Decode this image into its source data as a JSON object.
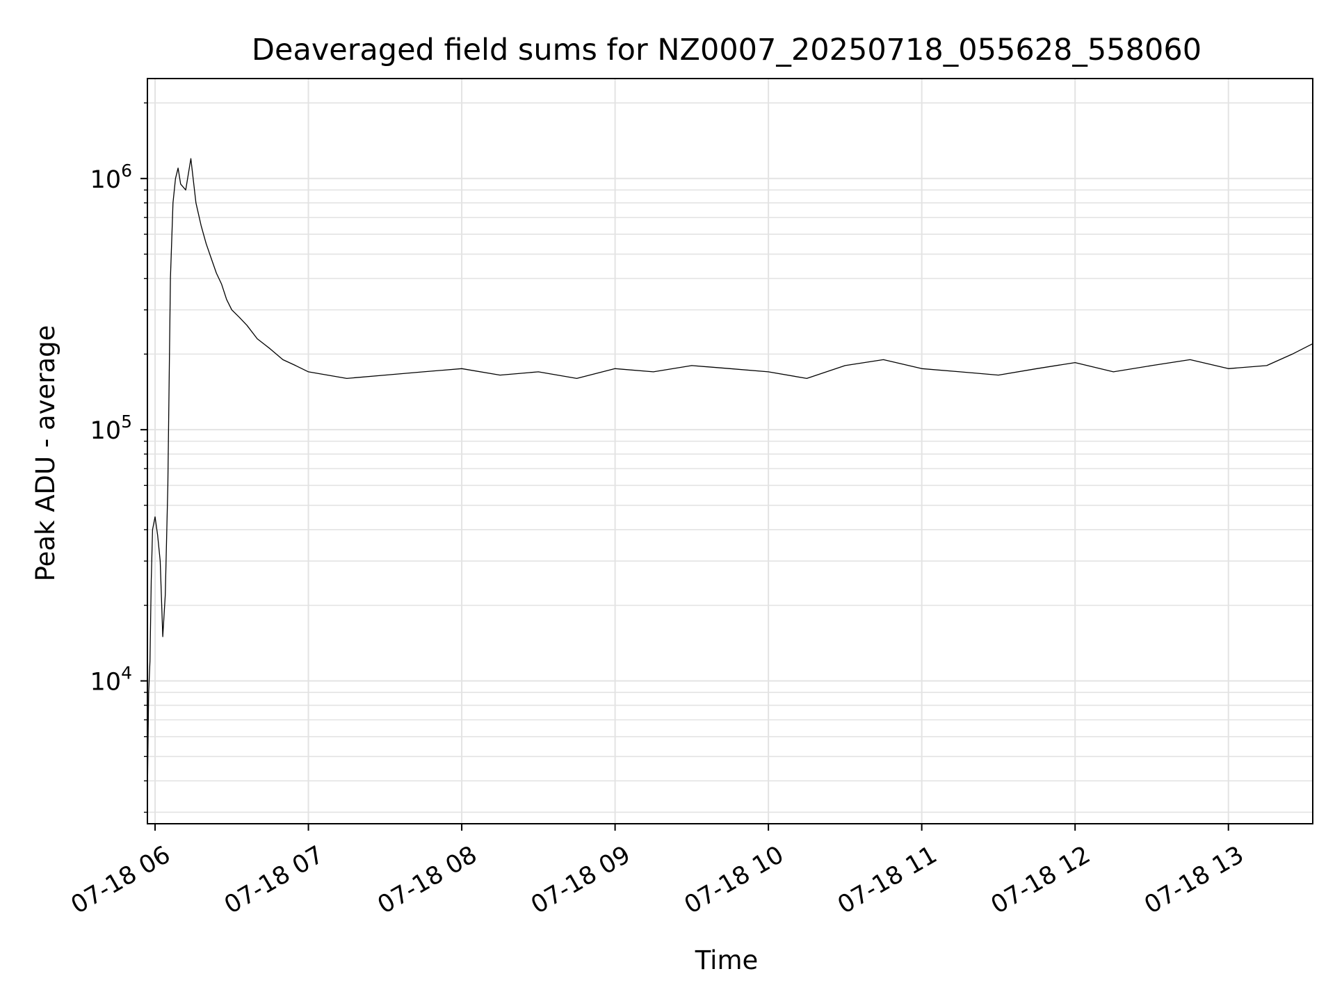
{
  "chart_data": {
    "type": "line",
    "title": "Deaveraged field sums for NZ0007_20250718_055628_558060",
    "xlabel": "Time",
    "ylabel": "Peak ADU - average",
    "xlim": [
      "07-18 05:57",
      "07-18 13:33"
    ],
    "ylim": [
      2700,
      2500000
    ],
    "yscale": "log",
    "x_ticks": [
      "07-18 06",
      "07-18 07",
      "07-18 08",
      "07-18 09",
      "07-18 10",
      "07-18 11",
      "07-18 12",
      "07-18 13"
    ],
    "y_ticks": [
      {
        "base": "10",
        "exp": "4",
        "value": 10000
      },
      {
        "base": "10",
        "exp": "5",
        "value": 100000
      },
      {
        "base": "10",
        "exp": "6",
        "value": 1000000
      }
    ],
    "grid": true,
    "line_color": "#000000",
    "grid_color": "#e3e3e3",
    "series": [
      {
        "x": [
          "07-18 05:57",
          "07-18 05:57:30",
          "07-18 05:58",
          "07-18 05:58:30",
          "07-18 05:59",
          "07-18 06:00",
          "07-18 06:01",
          "07-18 06:02",
          "07-18 06:03",
          "07-18 06:04",
          "07-18 06:05",
          "07-18 06:06",
          "07-18 06:07",
          "07-18 06:08",
          "07-18 06:09",
          "07-18 06:10",
          "07-18 06:12",
          "07-18 06:14",
          "07-18 06:16",
          "07-18 06:18",
          "07-18 06:20",
          "07-18 06:22",
          "07-18 06:24",
          "07-18 06:26",
          "07-18 06:28",
          "07-18 06:30",
          "07-18 06:33",
          "07-18 06:36",
          "07-18 06:40",
          "07-18 06:45",
          "07-18 06:50",
          "07-18 06:55",
          "07-18 07:00",
          "07-18 07:15",
          "07-18 07:30",
          "07-18 07:45",
          "07-18 08:00",
          "07-18 08:15",
          "07-18 08:30",
          "07-18 08:45",
          "07-18 09:00",
          "07-18 09:15",
          "07-18 09:30",
          "07-18 09:45",
          "07-18 10:00",
          "07-18 10:15",
          "07-18 10:30",
          "07-18 10:45",
          "07-18 11:00",
          "07-18 11:15",
          "07-18 11:30",
          "07-18 11:45",
          "07-18 12:00",
          "07-18 12:15",
          "07-18 12:30",
          "07-18 12:45",
          "07-18 13:00",
          "07-18 13:15",
          "07-18 13:25",
          "07-18 13:33"
        ],
        "y": [
          3500,
          9000,
          12000,
          25000,
          40000,
          45000,
          38000,
          30000,
          15000,
          22000,
          60000,
          400000,
          800000,
          1000000,
          1100000,
          950000,
          900000,
          1200000,
          800000,
          650000,
          550000,
          480000,
          420000,
          380000,
          330000,
          300000,
          280000,
          260000,
          230000,
          210000,
          190000,
          180000,
          170000,
          160000,
          165000,
          170000,
          175000,
          165000,
          170000,
          160000,
          175000,
          170000,
          180000,
          175000,
          170000,
          160000,
          180000,
          190000,
          175000,
          170000,
          165000,
          175000,
          185000,
          170000,
          180000,
          190000,
          175000,
          180000,
          200000,
          220000
        ]
      }
    ]
  }
}
